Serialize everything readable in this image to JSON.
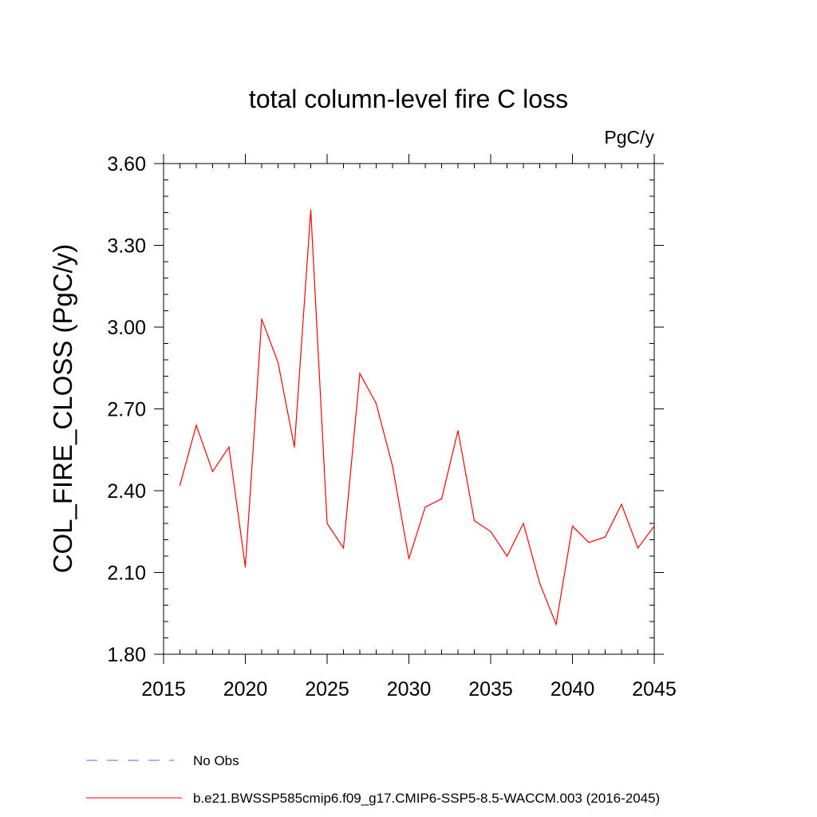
{
  "chart_data": {
    "type": "line",
    "title": "total column-level fire C loss",
    "units_label": "PgC/y",
    "ylabel": "COL_FIRE_CLOSS  (PgC/y)",
    "xlabel": "",
    "xlim": [
      2015,
      2045
    ],
    "ylim": [
      1.8,
      3.6
    ],
    "x_ticks": [
      2015,
      2020,
      2025,
      2030,
      2035,
      2040,
      2045
    ],
    "y_ticks": [
      1.8,
      2.1,
      2.4,
      2.7,
      3.0,
      3.3,
      3.6
    ],
    "y_tick_labels": [
      "1.80",
      "2.10",
      "2.40",
      "2.70",
      "3.00",
      "3.30",
      "3.60"
    ],
    "grid": false,
    "series": [
      {
        "name": "b.e21.BWSSP585cmip6.f09_g17.CMIP6-SSP5-8.5-WACCM.003 (2016-2045)",
        "color": "#ff0000",
        "x": [
          2016,
          2017,
          2018,
          2019,
          2020,
          2021,
          2022,
          2023,
          2024,
          2025,
          2026,
          2027,
          2028,
          2029,
          2030,
          2031,
          2032,
          2033,
          2034,
          2035,
          2036,
          2037,
          2038,
          2039,
          2040,
          2041,
          2042,
          2043,
          2044,
          2045
        ],
        "values": [
          2.42,
          2.64,
          2.47,
          2.56,
          2.12,
          3.03,
          2.87,
          2.56,
          3.43,
          2.28,
          2.19,
          2.83,
          2.72,
          2.49,
          2.15,
          2.34,
          2.37,
          2.62,
          2.29,
          2.25,
          2.16,
          2.28,
          2.06,
          1.91,
          2.27,
          2.21,
          2.23,
          2.35,
          2.19,
          2.27
        ]
      }
    ],
    "legend": [
      {
        "label": "No Obs",
        "color": "#6a5acd",
        "style": "dashed"
      },
      {
        "label": "b.e21.BWSSP585cmip6.f09_g17.CMIP6-SSP5-8.5-WACCM.003 (2016-2045)",
        "color": "#ff0000",
        "style": "solid"
      }
    ],
    "legend_position": "bottom"
  }
}
